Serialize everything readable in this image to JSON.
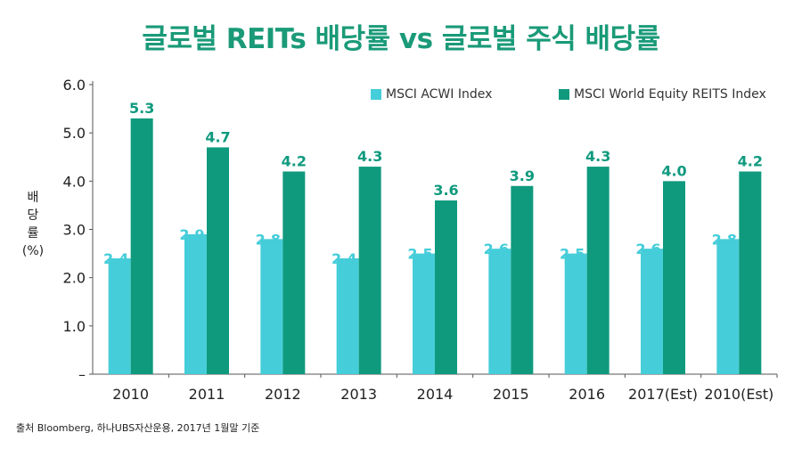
{
  "title": "글로벌 REITs 배당률 vs 글로벌 주식 배당률",
  "source": "출처 Bloomberg, 하나UBS자산운용, 2017년 1월말 기준",
  "chart_data": {
    "type": "bar",
    "ylabel_lines": [
      "배",
      "당",
      "률",
      "(%)"
    ],
    "categories": [
      "2010",
      "2011",
      "2012",
      "2013",
      "2014",
      "2015",
      "2016",
      "2017(Est)",
      "2010(Est)"
    ],
    "y_ticks": [
      "–",
      "1.0",
      "2.0",
      "3.0",
      "4.0",
      "5.0",
      "6.0"
    ],
    "ylim": [
      0,
      6.0
    ],
    "grid": false,
    "legend_position": "top-right",
    "series": [
      {
        "name": "MSCI ACWI Index",
        "color": "#45cdd9",
        "values": [
          2.4,
          2.9,
          2.8,
          2.4,
          2.5,
          2.6,
          2.5,
          2.6,
          2.8
        ],
        "labels": [
          "2.4",
          "2.9",
          "2.8",
          "2.4",
          "2.5",
          "2.6",
          "2.5",
          "2.6",
          "2.8"
        ]
      },
      {
        "name": "MSCI World Equity REITS Index",
        "color": "#0f9a7e",
        "values": [
          5.3,
          4.7,
          4.2,
          4.3,
          3.6,
          3.9,
          4.3,
          4.0,
          4.2
        ],
        "labels": [
          "5.3",
          "4.7",
          "4.2",
          "4.3",
          "3.6",
          "3.9",
          "4.3",
          "4.0",
          "4.2"
        ]
      }
    ]
  }
}
